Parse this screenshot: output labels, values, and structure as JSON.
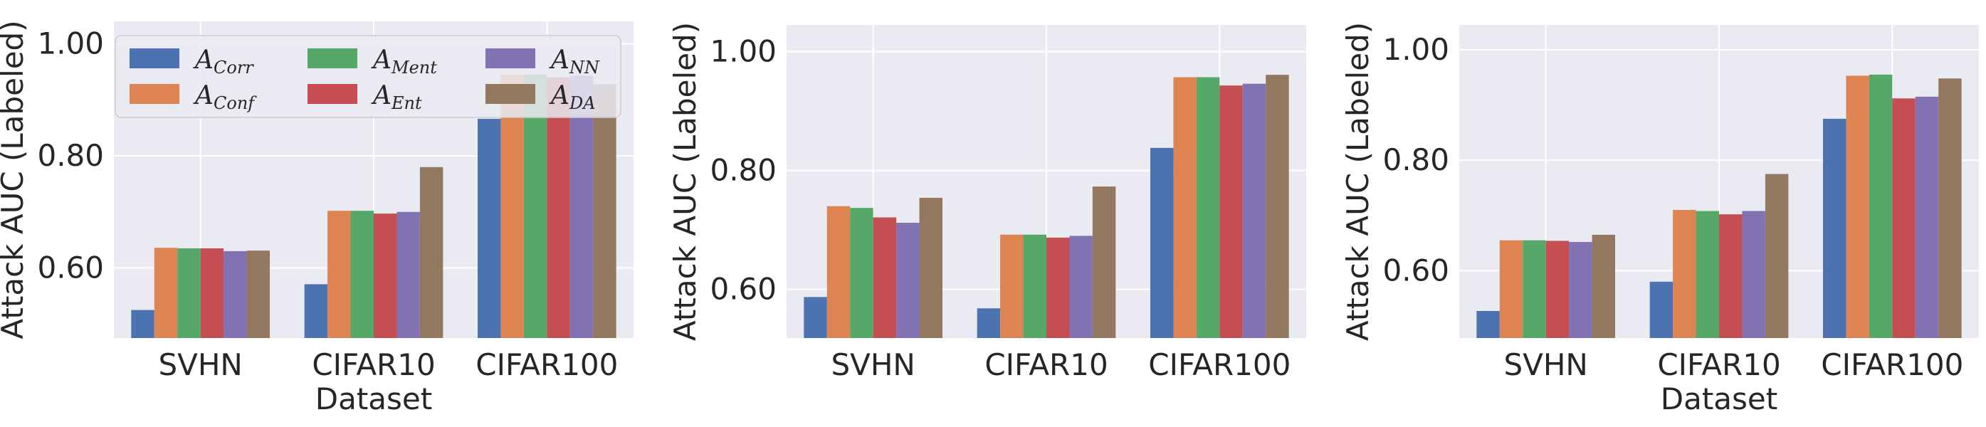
{
  "chart_data": {
    "type": "bar",
    "legend": {
      "placement": "top-left",
      "entries": [
        {
          "key": "Corr",
          "base": "A",
          "sub": "Corr",
          "color": "#4c72b0"
        },
        {
          "key": "Conf",
          "base": "A",
          "sub": "Conf",
          "color": "#dd8452"
        },
        {
          "key": "Ment",
          "base": "A",
          "sub": "Ment",
          "color": "#55a868"
        },
        {
          "key": "Ent",
          "base": "A",
          "sub": "Ent",
          "color": "#c44e52"
        },
        {
          "key": "NN",
          "base": "A",
          "sub": "NN",
          "color": "#8172b3"
        },
        {
          "key": "DA",
          "base": "A",
          "sub": "DA",
          "color": "#937860"
        }
      ]
    },
    "background": "#eaeaf2",
    "grid": true,
    "panels": [
      {
        "ylabel": "Attack AUC (Labeled)",
        "xlabel": "Dataset",
        "ylim": [
          0.475,
          1.04
        ],
        "yticks": [
          0.6,
          0.8,
          1.0
        ],
        "ytick_labels": [
          "0.60",
          "0.80",
          "1.00"
        ],
        "show_legend": true,
        "categories": [
          "SVHN",
          "CIFAR10",
          "CIFAR100"
        ],
        "series": [
          {
            "name": "Corr",
            "values": [
              0.525,
              0.571,
              0.866
            ]
          },
          {
            "name": "Conf",
            "values": [
              0.636,
              0.702,
              0.945
            ]
          },
          {
            "name": "Ment",
            "values": [
              0.635,
              0.702,
              0.945
            ]
          },
          {
            "name": "Ent",
            "values": [
              0.635,
              0.697,
              0.94
            ]
          },
          {
            "name": "NN",
            "values": [
              0.63,
              0.7,
              0.943
            ]
          },
          {
            "name": "DA",
            "values": [
              0.631,
              0.78,
              0.928
            ]
          }
        ]
      },
      {
        "ylabel": "Attack AUC (Labeled)",
        "xlabel": "",
        "ylim": [
          0.518,
          1.045
        ],
        "yticks": [
          0.6,
          0.8,
          1.0
        ],
        "ytick_labels": [
          "0.60",
          "0.80",
          "1.00"
        ],
        "show_legend": false,
        "categories": [
          "SVHN",
          "CIFAR10",
          "CIFAR100"
        ],
        "series": [
          {
            "name": "Corr",
            "values": [
              0.587,
              0.568,
              0.838
            ]
          },
          {
            "name": "Conf",
            "values": [
              0.74,
              0.692,
              0.957
            ]
          },
          {
            "name": "Ment",
            "values": [
              0.737,
              0.692,
              0.957
            ]
          },
          {
            "name": "Ent",
            "values": [
              0.721,
              0.687,
              0.943
            ]
          },
          {
            "name": "NN",
            "values": [
              0.712,
              0.69,
              0.946
            ]
          },
          {
            "name": "DA",
            "values": [
              0.754,
              0.773,
              0.961
            ]
          }
        ]
      },
      {
        "ylabel": "Attack AUC (Labeled)",
        "xlabel": "Dataset",
        "ylim": [
          0.478,
          1.045
        ],
        "yticks": [
          0.6,
          0.8,
          1.0
        ],
        "ytick_labels": [
          "0.60",
          "0.80",
          "1.00"
        ],
        "show_legend": false,
        "categories": [
          "SVHN",
          "CIFAR10",
          "CIFAR100"
        ],
        "series": [
          {
            "name": "Corr",
            "values": [
              0.527,
              0.58,
              0.875
            ]
          },
          {
            "name": "Conf",
            "values": [
              0.655,
              0.71,
              0.953
            ]
          },
          {
            "name": "Ment",
            "values": [
              0.655,
              0.708,
              0.955
            ]
          },
          {
            "name": "Ent",
            "values": [
              0.654,
              0.702,
              0.912
            ]
          },
          {
            "name": "NN",
            "values": [
              0.652,
              0.708,
              0.915
            ]
          },
          {
            "name": "DA",
            "values": [
              0.665,
              0.775,
              0.948
            ]
          }
        ]
      }
    ]
  }
}
